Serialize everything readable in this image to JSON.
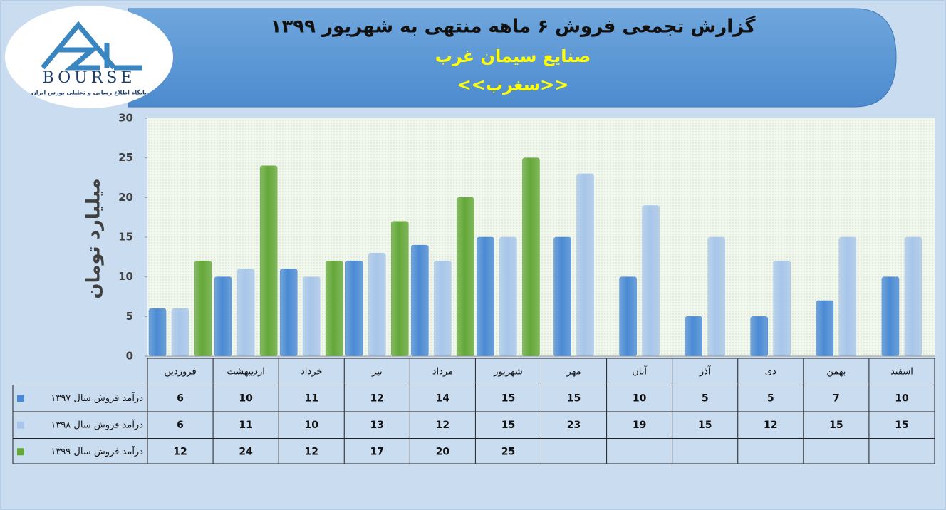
{
  "logo": {
    "name": "BOURSE",
    "tagline": "پایگاه اطلاع رسانی و تحلیلی بورس ایران"
  },
  "chart_data": {
    "type": "bar",
    "title": "گزارش تجمعی فروش ۶ ماهه منتهی به شهریور ۱۳۹۹",
    "subtitle": "صنایع سیمان غرب",
    "symbol": "<<سغرب>>",
    "y_label": "میلیارد تومان",
    "categories": [
      "فروردین",
      "اردیبهشت",
      "خرداد",
      "تیر",
      "مرداد",
      "شهریور",
      "مهر",
      "آبان",
      "آذر",
      "دی",
      "بهمن",
      "اسفند"
    ],
    "series": [
      {
        "name": "درآمد فروش سال ۱۳۹۷",
        "color": "#4a8ad4",
        "values": [
          6,
          10,
          11,
          12,
          14,
          15,
          15,
          10,
          5,
          5,
          7,
          10
        ]
      },
      {
        "name": "درآمد فروش سال ۱۳۹۸",
        "color": "#a8c6ea",
        "values": [
          6,
          11,
          10,
          13,
          12,
          15,
          23,
          19,
          15,
          12,
          15,
          15
        ]
      },
      {
        "name": "درآمد فروش سال ۱۳۹۹",
        "color": "#64a838",
        "values": [
          12,
          24,
          12,
          17,
          20,
          25,
          null,
          null,
          null,
          null,
          null,
          null
        ]
      }
    ],
    "ylim": [
      0,
      30
    ],
    "yticks": [
      0,
      5,
      10,
      15,
      20,
      25,
      30
    ],
    "grid": false,
    "data_table": true
  }
}
